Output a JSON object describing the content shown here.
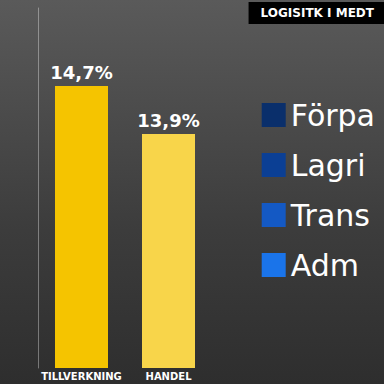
{
  "chart_data": {
    "type": "bar",
    "title": "LOGISITK I MEDT",
    "categories": [
      "TILLVERKNING",
      "HANDEL"
    ],
    "series": [
      {
        "values": [
          14.7,
          13.9
        ],
        "colors": [
          "#f5c400",
          "#f8d54a"
        ],
        "value_labels": [
          "14,7%",
          "13,9%"
        ]
      },
      {
        "name": "Förpa",
        "color": "#0a2f6b",
        "values": [
          null,
          null
        ]
      },
      {
        "name": "Lagri",
        "color": "#0b3f94",
        "values": [
          null,
          null
        ]
      },
      {
        "name": "Trans",
        "color": "#1459c4",
        "values": [
          null,
          null
        ]
      },
      {
        "name": "Adm",
        "color": "#1a74ea",
        "values": [
          null,
          null
        ]
      }
    ],
    "ylim": [
      10,
      16
    ],
    "legend": "right",
    "data_labels": true,
    "tick_labels": "x",
    "grid": false
  }
}
